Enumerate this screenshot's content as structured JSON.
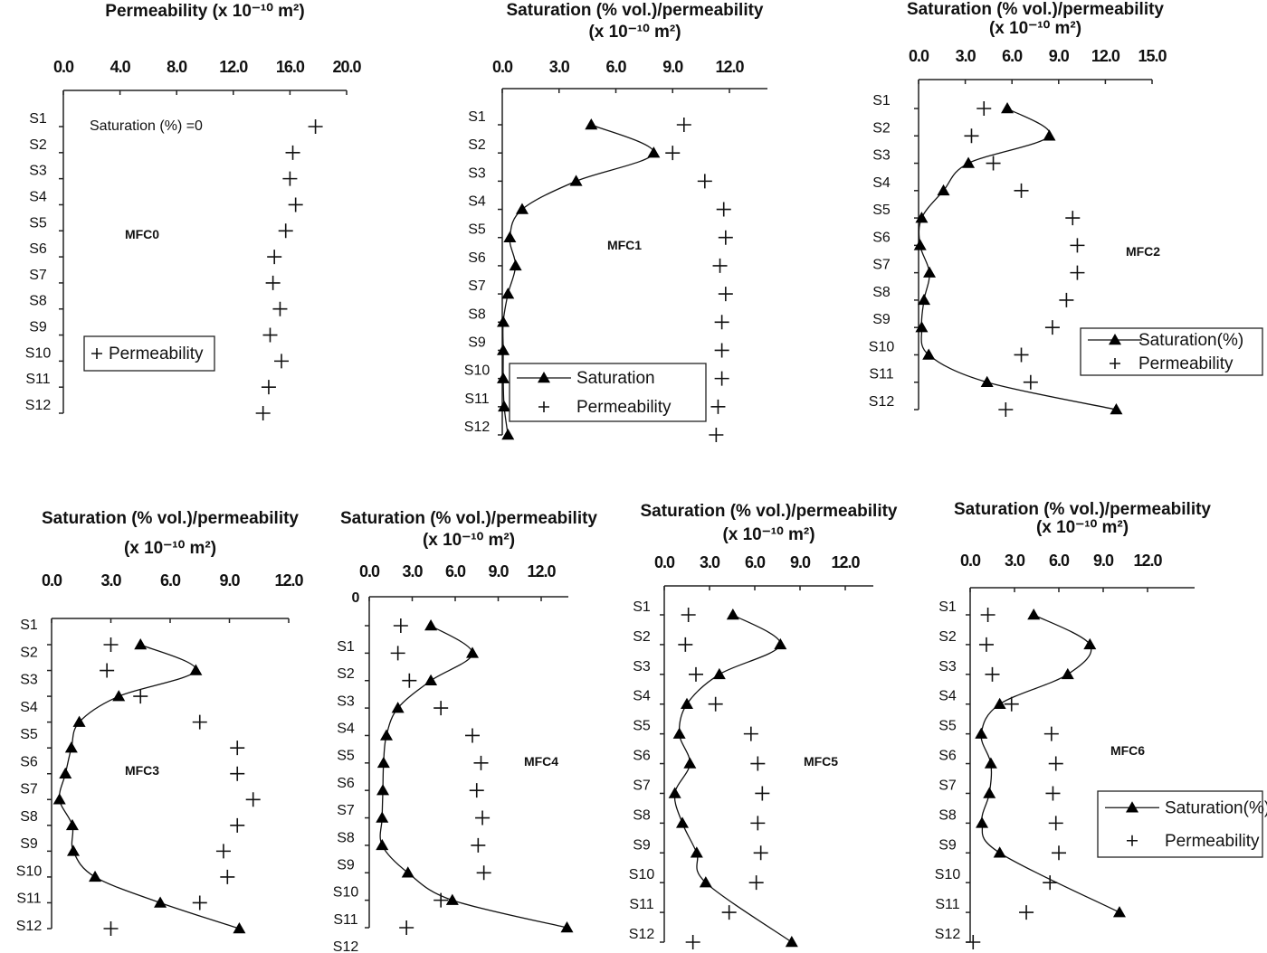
{
  "chart_data": [
    {
      "type": "scatter",
      "panel_label": "MFC0",
      "title": [
        "Permeability (x 10⁻¹⁰ m²)"
      ],
      "annotation": "Saturation (%) =0",
      "xlim": [
        0,
        20
      ],
      "xticks": [
        "0.0",
        "4.0",
        "8.0",
        "12.0",
        "16.0",
        "20.0"
      ],
      "categories": [
        "S1",
        "S2",
        "S3",
        "S4",
        "S5",
        "S6",
        "S7",
        "S8",
        "S9",
        "S10",
        "S11",
        "S12"
      ],
      "legend": "bottom-left",
      "series": [
        {
          "name": "Permeability",
          "marker": "plus",
          "line": false,
          "values": [
            17.8,
            16.2,
            16.0,
            16.4,
            15.7,
            14.9,
            14.8,
            15.3,
            14.6,
            15.4,
            14.5,
            14.1
          ]
        }
      ]
    },
    {
      "type": "line",
      "panel_label": "MFC1",
      "title": [
        "Saturation (% vol.)/permeability",
        "(x 10⁻¹⁰ m²)"
      ],
      "xlim": [
        0,
        12
      ],
      "xticks": [
        "0.0",
        "3.0",
        "6.0",
        "9.0",
        "12.0"
      ],
      "categories": [
        "S1",
        "S2",
        "S3",
        "S4",
        "S5",
        "S6",
        "S7",
        "S8",
        "S9",
        "S10",
        "S11",
        "S12"
      ],
      "legend": "bottom-left",
      "series": [
        {
          "name": "Saturation",
          "marker": "triangle",
          "line": true,
          "values": [
            4.7,
            8.0,
            3.9,
            1.05,
            0.4,
            0.7,
            0.3,
            0.05,
            0.05,
            0.05,
            0.1,
            0.3
          ]
        },
        {
          "name": "Permeability",
          "marker": "plus",
          "line": false,
          "values": [
            9.6,
            9.0,
            10.7,
            11.7,
            11.8,
            11.5,
            11.8,
            11.6,
            11.6,
            11.6,
            11.4,
            11.3
          ]
        }
      ]
    },
    {
      "type": "line",
      "panel_label": "MFC2",
      "title": [
        "Saturation (% vol.)/permeability",
        "(x 10⁻¹⁰ m²)"
      ],
      "xlim": [
        0,
        15
      ],
      "xticks": [
        "0.0",
        "3.0",
        "6.0",
        "9.0",
        "12.0",
        "15.0"
      ],
      "categories": [
        "S1",
        "S2",
        "S3",
        "S4",
        "S5",
        "S6",
        "S7",
        "S8",
        "S9",
        "S10",
        "S11",
        "S12"
      ],
      "legend": "right",
      "series": [
        {
          "name": "Saturation(%)",
          "marker": "triangle",
          "line": true,
          "values": [
            5.7,
            8.4,
            3.2,
            1.6,
            0.2,
            0.1,
            0.7,
            0.35,
            0.2,
            0.65,
            4.4,
            12.7
          ]
        },
        {
          "name": "Permeability",
          "marker": "plus",
          "line": false,
          "values": [
            4.2,
            3.4,
            4.8,
            6.6,
            9.9,
            10.2,
            10.2,
            9.5,
            8.6,
            6.6,
            7.2,
            5.6
          ]
        }
      ]
    },
    {
      "type": "line",
      "panel_label": "MFC3",
      "title": [
        "Saturation (% vol.)/permeability",
        "(x 10⁻¹⁰ m²)"
      ],
      "xlim": [
        0,
        12
      ],
      "xticks": [
        "0.0",
        "3.0",
        "6.0",
        "9.0",
        "12.0"
      ],
      "categories": [
        "S1",
        "S2",
        "S3",
        "S4",
        "S5",
        "S6",
        "S7",
        "S8",
        "S9",
        "S10",
        "S11",
        "S12"
      ],
      "legend": "none",
      "series": [
        {
          "name": "Saturation",
          "marker": "triangle",
          "line": true,
          "values": [
            4.5,
            7.3,
            3.4,
            1.4,
            1.0,
            0.7,
            0.4,
            1.05,
            1.1,
            2.2,
            5.5,
            9.5
          ]
        },
        {
          "name": "Permeability",
          "marker": "plus",
          "line": false,
          "values": [
            3.0,
            2.8,
            4.5,
            7.5,
            9.4,
            9.4,
            10.2,
            9.4,
            8.7,
            8.9,
            7.5,
            3.0
          ]
        }
      ]
    },
    {
      "type": "line",
      "panel_label": "MFC4",
      "title": [
        "Saturation (% vol.)/permeability",
        "(x 10⁻¹⁰ m²)"
      ],
      "xlim": [
        0,
        12
      ],
      "xticks": [
        "0.0",
        "3.0",
        "6.0",
        "9.0",
        "12.0"
      ],
      "ytick_top": "0",
      "categories": [
        "S1",
        "S2",
        "S3",
        "S4",
        "S5",
        "S6",
        "S7",
        "S8",
        "S9",
        "S10",
        "S11",
        "S12"
      ],
      "legend": "none",
      "series": [
        {
          "name": "Saturation",
          "marker": "triangle",
          "line": true,
          "values": [
            4.3,
            7.2,
            4.3,
            2.0,
            1.2,
            1.0,
            0.95,
            0.9,
            0.9,
            2.7,
            5.8,
            13.8
          ]
        },
        {
          "name": "Permeability",
          "marker": "plus",
          "line": false,
          "values": [
            2.2,
            2.0,
            2.8,
            5.0,
            7.2,
            7.8,
            7.5,
            7.9,
            7.6,
            8.0,
            5.0,
            2.6
          ]
        }
      ]
    },
    {
      "type": "line",
      "panel_label": "MFC5",
      "title": [
        "Saturation (% vol.)/permeability",
        "(x 10⁻¹⁰ m²)"
      ],
      "xlim": [
        0,
        12
      ],
      "xticks": [
        "0.0",
        "3.0",
        "6.0",
        "9.0",
        "12.0"
      ],
      "categories": [
        "S1",
        "S2",
        "S3",
        "S4",
        "S5",
        "S6",
        "S7",
        "S8",
        "S9",
        "S10",
        "S11",
        "S12"
      ],
      "legend": "none",
      "series": [
        {
          "name": "Saturation",
          "marker": "triangle",
          "line": true,
          "values": [
            4.55,
            7.7,
            3.65,
            1.5,
            1.0,
            1.7,
            0.7,
            1.2,
            2.15,
            2.75,
            null,
            8.45
          ]
        },
        {
          "name": "Permeability",
          "marker": "plus",
          "line": false,
          "values": [
            1.6,
            1.4,
            2.1,
            3.4,
            5.75,
            6.2,
            6.5,
            6.2,
            6.4,
            6.1,
            4.3,
            1.9
          ]
        }
      ]
    },
    {
      "type": "line",
      "panel_label": "MFC6",
      "title": [
        "Saturation (% vol.)/permeability",
        "(x 10⁻¹⁰ m²)"
      ],
      "xlim": [
        0,
        12
      ],
      "xticks": [
        "0.0",
        "3.0",
        "6.0",
        "9.0",
        "12.0"
      ],
      "categories": [
        "S1",
        "S2",
        "S3",
        "S4",
        "S5",
        "S6",
        "S7",
        "S8",
        "S9",
        "S10",
        "S11",
        "S12"
      ],
      "legend": "right",
      "series": [
        {
          "name": "Saturation(%)",
          "marker": "triangle",
          "line": true,
          "values": [
            4.3,
            8.1,
            6.6,
            2.0,
            0.75,
            1.4,
            1.3,
            0.8,
            2.0,
            null,
            10.1,
            null
          ]
        },
        {
          "name": "Permeability",
          "marker": "plus",
          "line": false,
          "values": [
            1.2,
            1.1,
            1.5,
            2.8,
            5.5,
            5.8,
            5.6,
            5.8,
            6.0,
            5.4,
            3.8,
            0.2
          ]
        }
      ]
    }
  ]
}
